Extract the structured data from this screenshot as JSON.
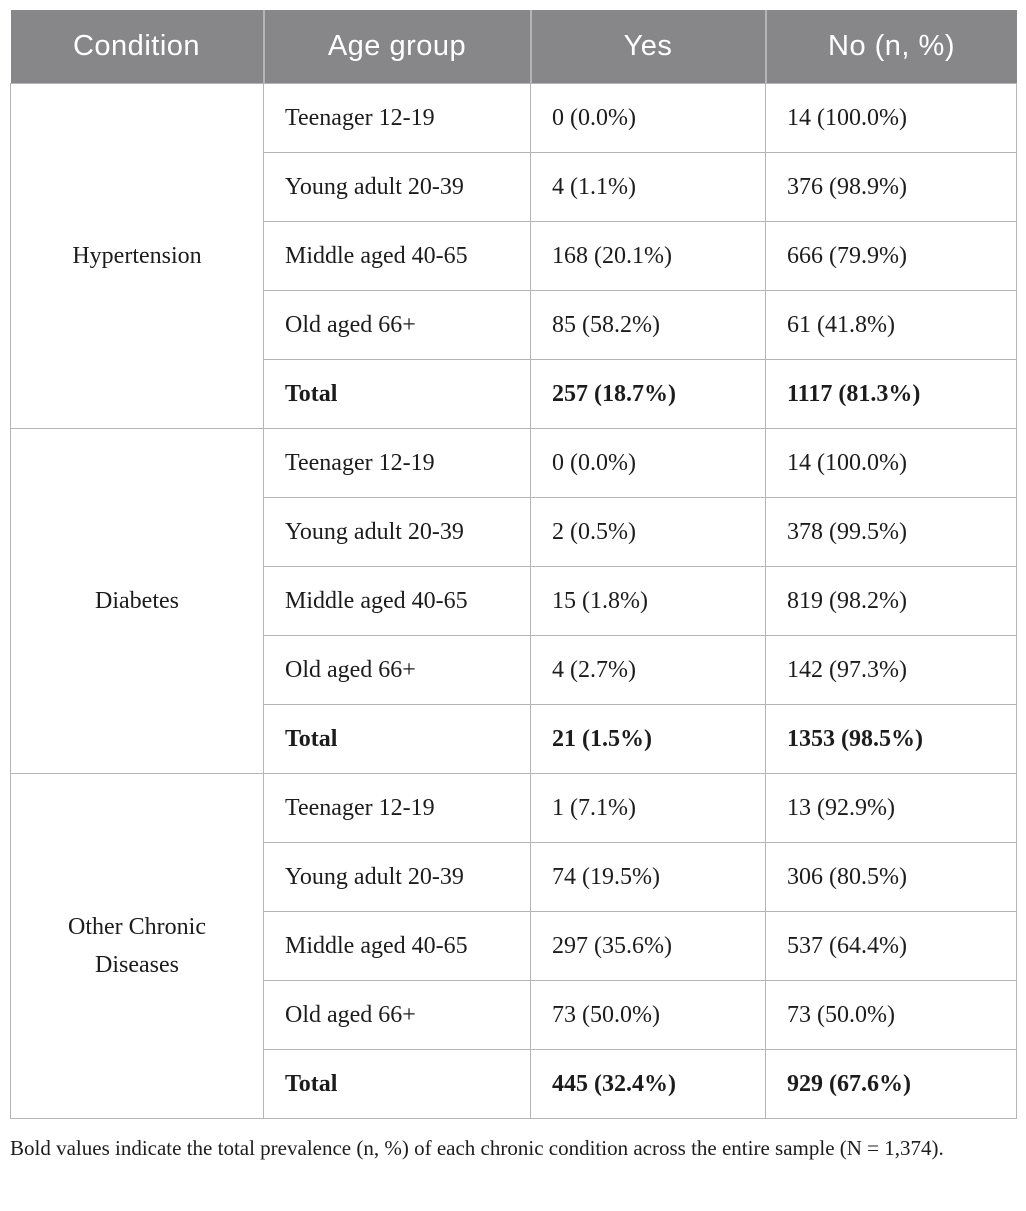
{
  "table": {
    "headers": [
      "Condition",
      "Age group",
      "Yes",
      "No (n, %)"
    ],
    "groups": [
      {
        "condition": "Hypertension",
        "rows": [
          {
            "age_group": "Teenager 12-19",
            "yes": "0 (0.0%)",
            "no": "14 (100.0%)"
          },
          {
            "age_group": "Young adult 20-39",
            "yes": "4 (1.1%)",
            "no": "376 (98.9%)"
          },
          {
            "age_group": "Middle aged 40-65",
            "yes": "168 (20.1%)",
            "no": "666 (79.9%)"
          },
          {
            "age_group": "Old aged 66+",
            "yes": "85 (58.2%)",
            "no": "61 (41.8%)"
          },
          {
            "age_group": "Total",
            "yes": "257 (18.7%)",
            "no": "1117 (81.3%)"
          }
        ]
      },
      {
        "condition": "Diabetes",
        "rows": [
          {
            "age_group": "Teenager 12-19",
            "yes": "0 (0.0%)",
            "no": "14 (100.0%)"
          },
          {
            "age_group": "Young adult 20-39",
            "yes": "2 (0.5%)",
            "no": "378 (99.5%)"
          },
          {
            "age_group": "Middle aged 40-65",
            "yes": "15 (1.8%)",
            "no": "819 (98.2%)"
          },
          {
            "age_group": "Old aged 66+",
            "yes": "4 (2.7%)",
            "no": "142 (97.3%)"
          },
          {
            "age_group": "Total",
            "yes": "21 (1.5%)",
            "no": "1353 (98.5%)"
          }
        ]
      },
      {
        "condition": "Other Chronic Diseases",
        "rows": [
          {
            "age_group": "Teenager 12-19",
            "yes": "1 (7.1%)",
            "no": "13 (92.9%)"
          },
          {
            "age_group": "Young adult 20-39",
            "yes": "74 (19.5%)",
            "no": "306 (80.5%)"
          },
          {
            "age_group": "Middle aged 40-65",
            "yes": "297 (35.6%)",
            "no": "537 (64.4%)"
          },
          {
            "age_group": "Old aged 66+",
            "yes": "73 (50.0%)",
            "no": "73 (50.0%)"
          },
          {
            "age_group": "Total",
            "yes": "445 (32.4%)",
            "no": "929 (67.6%)"
          }
        ]
      }
    ]
  },
  "footnote": "Bold values indicate the total prevalence (n, %) of each chronic condition across the entire sample (N = 1,374).",
  "colors": {
    "header_bg": "#87878a",
    "header_text": "#ffffff",
    "header_divider": "#b4b4b6",
    "border": "#b5b5b5",
    "body_text": "#1c1c1c"
  }
}
